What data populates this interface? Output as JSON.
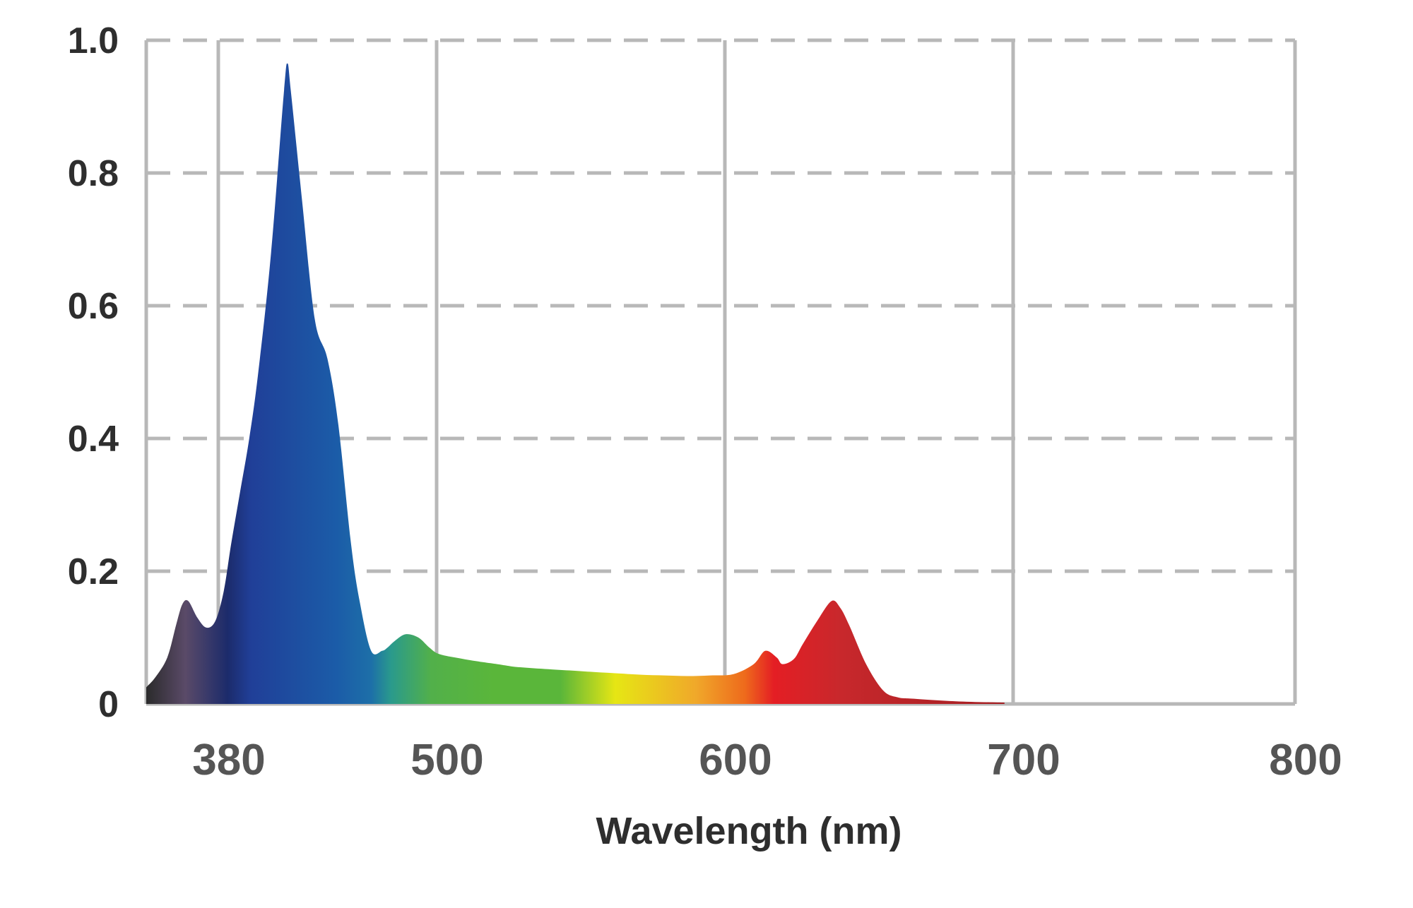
{
  "chart_data": {
    "type": "area",
    "title": "",
    "xlabel": "Wavelength (nm)",
    "ylabel": "",
    "x_ticks": [
      380,
      500,
      600,
      700,
      800
    ],
    "x_tick_labels": [
      "380",
      "500",
      "600",
      "700",
      "800"
    ],
    "y_ticks": [
      0,
      0.2,
      0.4,
      0.6,
      0.8,
      1.0
    ],
    "y_tick_labels": [
      "0",
      "0.2",
      "0.4",
      "0.6",
      "0.8",
      "1.0"
    ],
    "xlim": [
      356,
      800
    ],
    "ylim": [
      0,
      1.0
    ],
    "grid": {
      "horizontal": "dashed",
      "vertical": "solid",
      "color": "#b8b8b8"
    },
    "legend": "none",
    "series": [
      {
        "x": [
          356,
          359,
          363,
          366,
          368,
          370,
          373,
          376,
          379,
          383,
          387,
          392,
          397,
          402,
          409,
          416,
          418,
          420,
          426,
          433,
          440,
          446,
          453,
          458,
          464,
          470,
          473,
          477,
          483,
          490,
          496,
          501,
          509,
          516,
          521,
          524,
          527,
          533,
          540,
          548,
          555,
          563,
          571,
          579,
          587,
          595,
          603,
          610,
          614,
          618,
          620,
          624,
          627,
          632,
          637,
          640,
          643,
          649,
          655,
          660,
          665,
          680,
          697
        ],
        "y": [
          0.025,
          0.04,
          0.07,
          0.12,
          0.15,
          0.155,
          0.13,
          0.115,
          0.125,
          0.17,
          0.24,
          0.32,
          0.4,
          0.5,
          0.68,
          0.92,
          0.965,
          0.92,
          0.76,
          0.58,
          0.52,
          0.42,
          0.24,
          0.15,
          0.08,
          0.08,
          0.085,
          0.095,
          0.105,
          0.1,
          0.085,
          0.075,
          0.068,
          0.063,
          0.06,
          0.058,
          0.056,
          0.054,
          0.052,
          0.05,
          0.048,
          0.046,
          0.044,
          0.043,
          0.042,
          0.043,
          0.045,
          0.06,
          0.08,
          0.07,
          0.06,
          0.068,
          0.09,
          0.125,
          0.155,
          0.145,
          0.12,
          0.06,
          0.02,
          0.01,
          0.008,
          0.004,
          0.002
        ]
      }
    ],
    "colors": {
      "gradient_stops": [
        {
          "x": 356,
          "color": "#2b2b2b"
        },
        {
          "x": 369,
          "color": "#5a4a68"
        },
        {
          "x": 385,
          "color": "#1c2b6b"
        },
        {
          "x": 398,
          "color": "#203f98"
        },
        {
          "x": 445,
          "color": "#1b5ca8"
        },
        {
          "x": 464,
          "color": "#1d6fa8"
        },
        {
          "x": 475,
          "color": "#2a9a8c"
        },
        {
          "x": 497,
          "color": "#52b04a"
        },
        {
          "x": 520,
          "color": "#5ab63a"
        },
        {
          "x": 543,
          "color": "#5ab63a"
        },
        {
          "x": 562,
          "color": "#e6e614"
        },
        {
          "x": 590,
          "color": "#f0a82a"
        },
        {
          "x": 607,
          "color": "#ee6a1c"
        },
        {
          "x": 617,
          "color": "#e41e24"
        },
        {
          "x": 640,
          "color": "#c8282c"
        },
        {
          "x": 697,
          "color": "#a31e22"
        }
      ],
      "grid": "#b8b8b8",
      "text": "#2e2e2e",
      "x_tick_text": "#555555"
    }
  }
}
